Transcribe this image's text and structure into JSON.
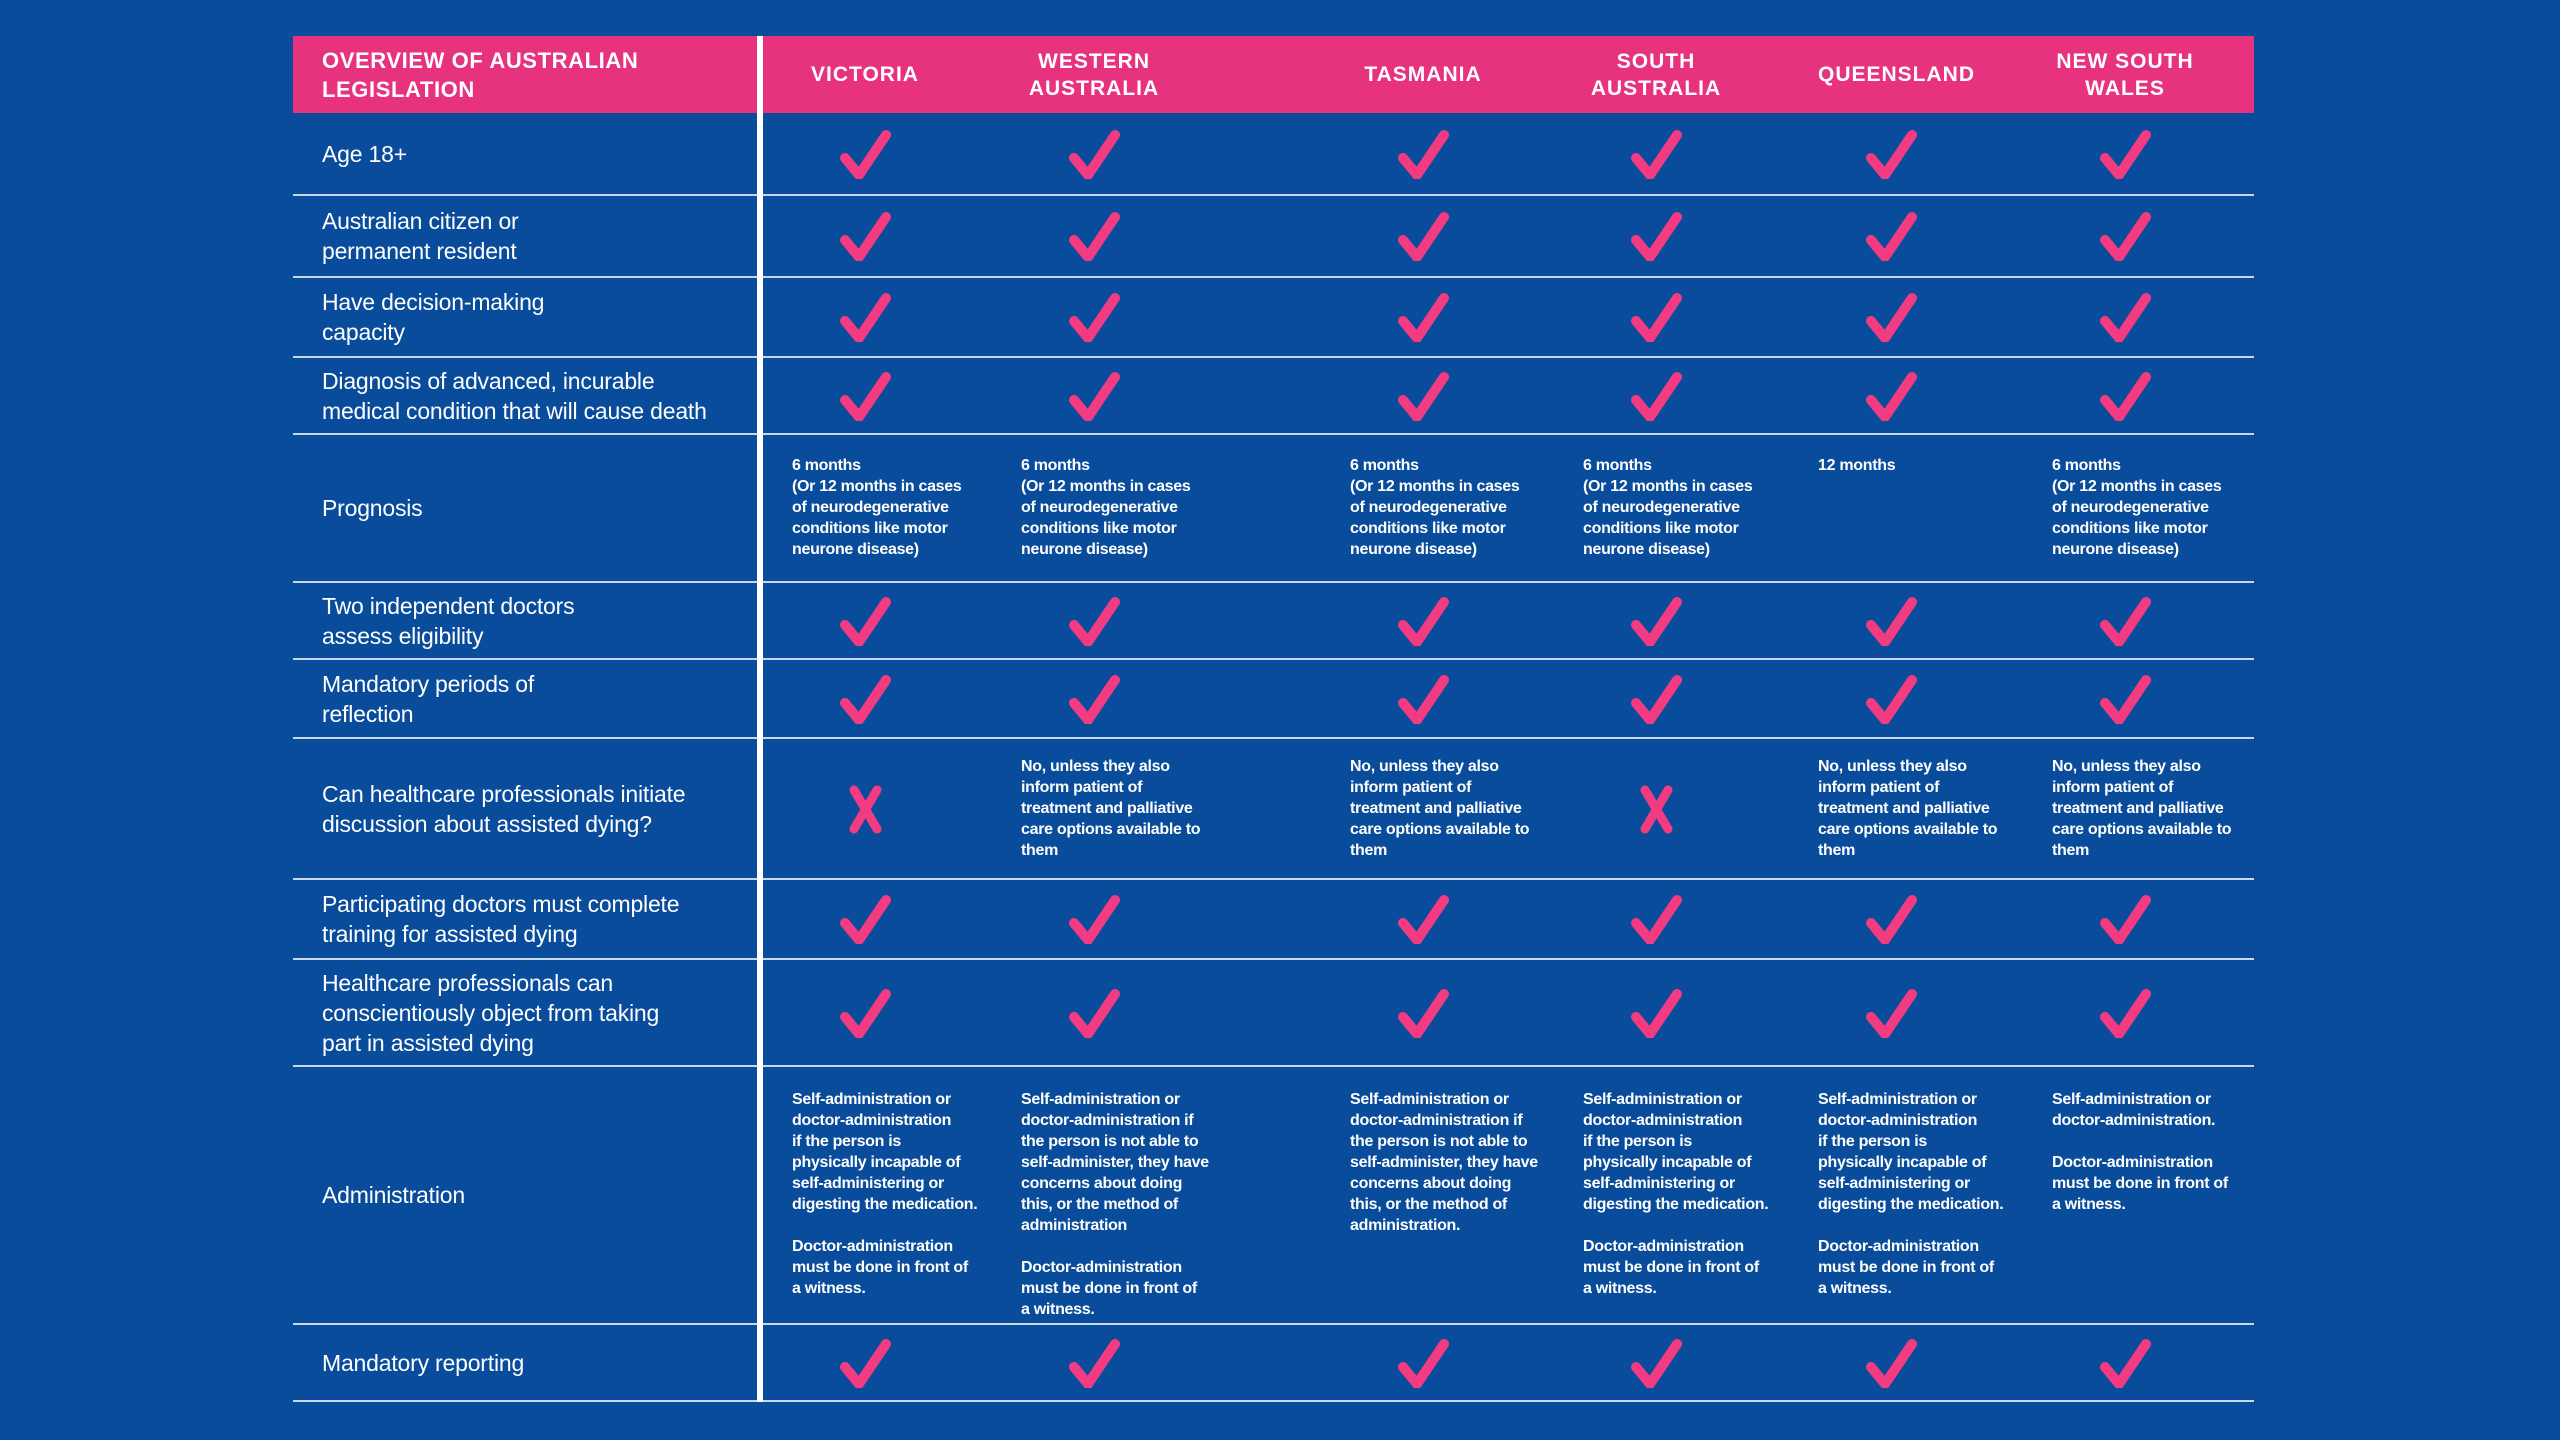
{
  "chart_data": {
    "type": "table",
    "title": "OVERVIEW OF AUSTRALIAN\nLEGISLATION",
    "columns": [
      "VICTORIA",
      "WESTERN\nAUSTRALIA",
      "TASMANIA",
      "SOUTH\nAUSTRALIA",
      "QUEENSLAND",
      "NEW SOUTH\nWALES"
    ],
    "rows": [
      {
        "label": "Age 18+",
        "cells": [
          {
            "mark": "check"
          },
          {
            "mark": "check"
          },
          {
            "mark": "check"
          },
          {
            "mark": "check"
          },
          {
            "mark": "check"
          },
          {
            "mark": "check"
          }
        ]
      },
      {
        "label": "Australian citizen or\npermanent resident",
        "cells": [
          {
            "mark": "check"
          },
          {
            "mark": "check"
          },
          {
            "mark": "check"
          },
          {
            "mark": "check"
          },
          {
            "mark": "check"
          },
          {
            "mark": "check"
          }
        ]
      },
      {
        "label": "Have decision-making\ncapacity",
        "cells": [
          {
            "mark": "check"
          },
          {
            "mark": "check"
          },
          {
            "mark": "check"
          },
          {
            "mark": "check"
          },
          {
            "mark": "check"
          },
          {
            "mark": "check"
          }
        ]
      },
      {
        "label": "Diagnosis of advanced, incurable\nmedical condition that will cause death",
        "cells": [
          {
            "mark": "check"
          },
          {
            "mark": "check"
          },
          {
            "mark": "check"
          },
          {
            "mark": "check"
          },
          {
            "mark": "check"
          },
          {
            "mark": "check"
          }
        ]
      },
      {
        "label": "Prognosis",
        "cells": [
          {
            "text": "6 months\n(Or 12 months in cases\nof neurodegenerative\nconditions like motor\nneurone disease)"
          },
          {
            "text": "6 months\n(Or 12 months in cases\nof neurodegenerative\nconditions like motor\nneurone disease)"
          },
          {
            "text": "6 months\n(Or 12 months in cases\nof neurodegenerative\nconditions like motor\nneurone disease)"
          },
          {
            "text": "6 months\n(Or 12 months in cases\nof neurodegenerative\nconditions like motor\nneurone disease)"
          },
          {
            "text": "12 months"
          },
          {
            "text": "6 months\n(Or 12 months in cases\nof neurodegenerative\nconditions like motor\nneurone disease)"
          }
        ]
      },
      {
        "label": "Two independent doctors\nassess eligibility",
        "cells": [
          {
            "mark": "check"
          },
          {
            "mark": "check"
          },
          {
            "mark": "check"
          },
          {
            "mark": "check"
          },
          {
            "mark": "check"
          },
          {
            "mark": "check"
          }
        ]
      },
      {
        "label": "Mandatory periods of\nreflection",
        "cells": [
          {
            "mark": "check"
          },
          {
            "mark": "check"
          },
          {
            "mark": "check"
          },
          {
            "mark": "check"
          },
          {
            "mark": "check"
          },
          {
            "mark": "check"
          }
        ]
      },
      {
        "label": "Can healthcare professionals initiate\ndiscussion about assisted dying?",
        "cells": [
          {
            "mark": "cross"
          },
          {
            "text": "No, unless they also\ninform patient of\ntreatment and palliative\ncare options available to\nthem"
          },
          {
            "text": "No, unless they also\ninform patient of\ntreatment and palliative\ncare options available to\nthem"
          },
          {
            "mark": "cross"
          },
          {
            "text": "No, unless they also\ninform patient of\ntreatment and palliative\ncare options available to\nthem"
          },
          {
            "text": "No, unless they also\ninform patient of\ntreatment and palliative\ncare options available to\nthem"
          }
        ]
      },
      {
        "label": "Participating doctors must complete\ntraining for assisted dying",
        "cells": [
          {
            "mark": "check"
          },
          {
            "mark": "check"
          },
          {
            "mark": "check"
          },
          {
            "mark": "check"
          },
          {
            "mark": "check"
          },
          {
            "mark": "check"
          }
        ]
      },
      {
        "label": "Healthcare professionals can\nconscientiously object from taking\npart in assisted dying",
        "cells": [
          {
            "mark": "check"
          },
          {
            "mark": "check"
          },
          {
            "mark": "check"
          },
          {
            "mark": "check"
          },
          {
            "mark": "check"
          },
          {
            "mark": "check"
          }
        ]
      },
      {
        "label": "Administration",
        "cells": [
          {
            "text": "Self-administration or\ndoctor-administration\nif the person is\nphysically incapable of\nself-administering or\ndigesting the medication.\n\nDoctor-administration\nmust be done in front of\na witness."
          },
          {
            "text": "Self-administration or\ndoctor-administration if\nthe person is not able to\nself-administer, they have\nconcerns about doing\nthis, or the method of\nadministration\n\nDoctor-administration\nmust be done in front of\na witness."
          },
          {
            "text": "Self-administration or\ndoctor-administration if\nthe person is not able to\nself-administer, they have\nconcerns about doing\nthis, or the method of\nadministration."
          },
          {
            "text": "Self-administration or\ndoctor-administration\nif the person is\nphysically incapable of\nself-administering or\ndigesting the medication.\n\nDoctor-administration\nmust be done in front of\na witness."
          },
          {
            "text": "Self-administration or\ndoctor-administration\nif the person is\nphysically incapable of\nself-administering or\ndigesting the medication.\n\nDoctor-administration\nmust be done in front of\na witness."
          },
          {
            "text": "Self-administration or\ndoctor-administration.\n\nDoctor-administration\nmust be done in front of\na witness."
          }
        ]
      },
      {
        "label": "Mandatory reporting",
        "cells": [
          {
            "mark": "check"
          },
          {
            "mark": "check"
          },
          {
            "mark": "check"
          },
          {
            "mark": "check"
          },
          {
            "mark": "check"
          },
          {
            "mark": "check"
          }
        ]
      }
    ]
  },
  "colors": {
    "background": "#0a4c9c",
    "header_pink": "#E7337E",
    "mark_pink": "#F23B80",
    "divider": "rgba(233,241,250,0.85)",
    "text": "#ffffff"
  },
  "icons": {
    "check": "check-icon",
    "cross": "cross-icon"
  }
}
